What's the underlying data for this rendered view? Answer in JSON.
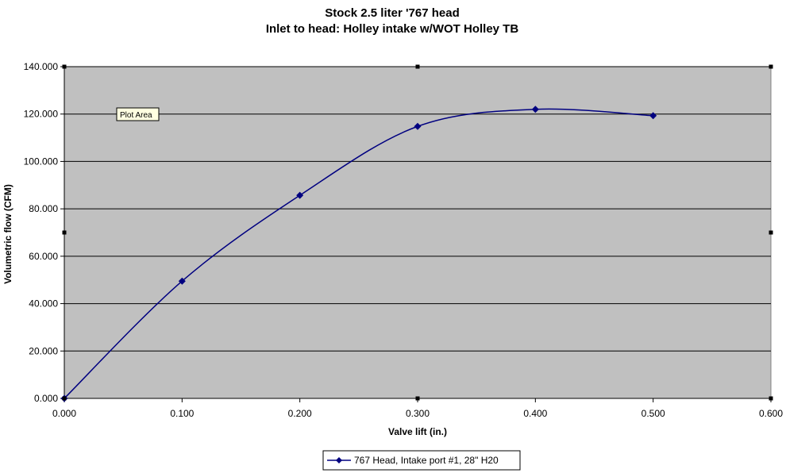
{
  "chart_data": {
    "type": "line",
    "title": "Stock 2.5 liter '767 head",
    "subtitle": "Inlet to head:  Holley intake w/WOT Holley TB",
    "xlabel": "Valve lift (in.)",
    "ylabel": "Volumetric flow (CFM)",
    "xlim": [
      0,
      0.6
    ],
    "ylim": [
      0,
      140
    ],
    "x_ticks": [
      "0.000",
      "0.100",
      "0.200",
      "0.300",
      "0.400",
      "0.500",
      "0.600"
    ],
    "y_ticks": [
      "0.000",
      "20.000",
      "40.000",
      "60.000",
      "80.000",
      "100.000",
      "120.000",
      "140.000"
    ],
    "grid": "horizontal",
    "smoothed": true,
    "legend_position": "bottom",
    "plot_background": "#C0C0C0",
    "series": [
      {
        "name": "767 Head, Intake port #1, 28\" H20",
        "color": "#000080",
        "marker": "diamond",
        "x": [
          0.0,
          0.1,
          0.2,
          0.3,
          0.4,
          0.5
        ],
        "y": [
          0.0,
          49.5,
          85.7,
          114.8,
          122.0,
          119.3
        ]
      }
    ],
    "annotation": "Plot Area"
  }
}
